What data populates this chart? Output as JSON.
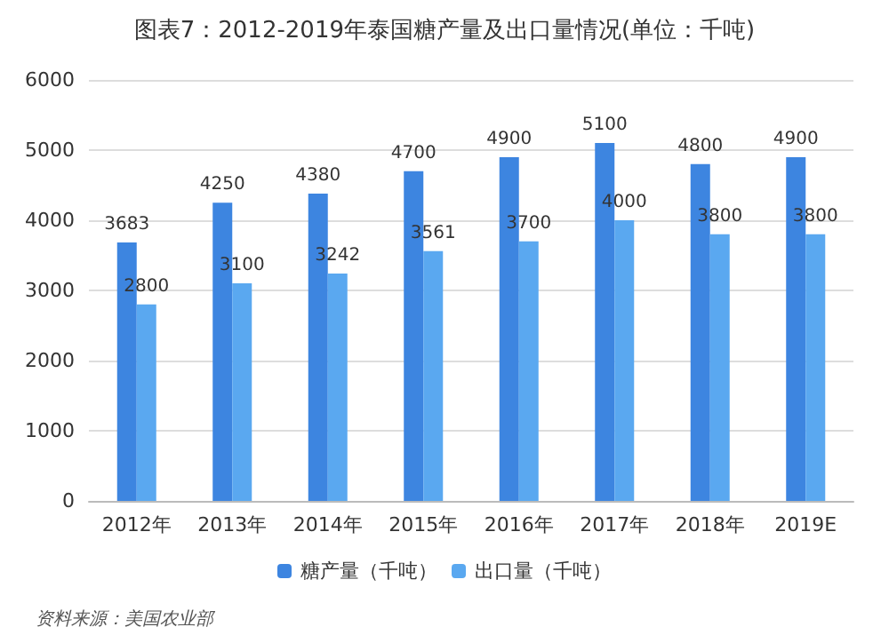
{
  "chart_data": {
    "type": "bar",
    "title": "图表7：2012-2019年泰国糖产量及出口量情况(单位：千吨)",
    "categories": [
      "2012年",
      "2013年",
      "2014年",
      "2015年",
      "2016年",
      "2017年",
      "2018年",
      "2019E"
    ],
    "series": [
      {
        "name": "糖产量（千吨）",
        "color": "#3d85e0",
        "values": [
          3683,
          4250,
          4380,
          4700,
          4900,
          5100,
          4800,
          4900
        ]
      },
      {
        "name": "出口量（千吨）",
        "color": "#5aa8f0",
        "values": [
          2800,
          3100,
          3242,
          3561,
          3700,
          4000,
          3800,
          3800
        ]
      }
    ],
    "ylim": [
      0,
      6000
    ],
    "yticks": [
      0,
      1000,
      2000,
      3000,
      4000,
      5000,
      6000
    ],
    "grid": "y",
    "legend": "bottom",
    "data_labels": true,
    "annotations": [
      "资料来源：美国农业部"
    ]
  }
}
